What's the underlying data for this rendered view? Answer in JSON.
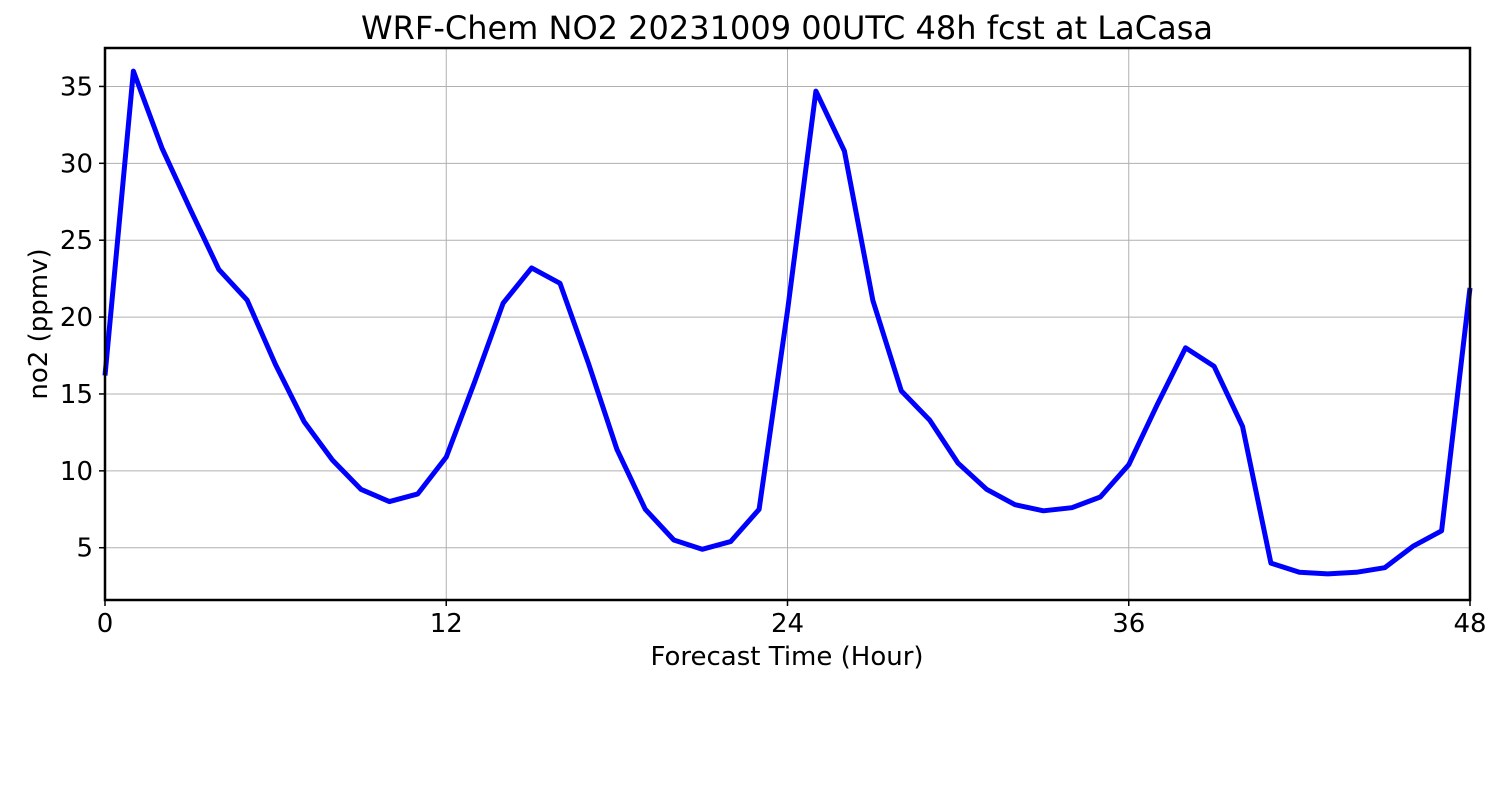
{
  "chart_data": {
    "type": "line",
    "title": "WRF-Chem NO2  20231009 00UTC 48h fcst at LaCasa",
    "xlabel": "Forecast Time (Hour)",
    "ylabel": "no2  (ppmv)",
    "xlim": [
      0,
      48
    ],
    "ylim": [
      1.6,
      37.5
    ],
    "xticks": [
      0,
      12,
      24,
      36,
      48
    ],
    "yticks": [
      5,
      10,
      15,
      20,
      25,
      30,
      35
    ],
    "grid": true,
    "line_color": "#0000ff",
    "grid_color": "#b0b0b0",
    "series": [
      {
        "x": [
          0,
          1,
          2,
          3,
          4,
          5,
          6,
          7,
          8,
          9,
          10,
          11,
          12,
          13,
          14,
          15,
          16,
          17,
          18,
          19,
          20,
          21,
          22,
          23,
          24,
          25,
          26,
          27,
          28,
          29,
          30,
          31,
          32,
          33,
          34,
          35,
          36,
          37,
          38,
          39,
          40,
          41,
          42,
          43,
          44,
          45,
          46,
          47,
          48
        ],
        "values": [
          16.2,
          36.0,
          31.0,
          27.0,
          23.1,
          21.1,
          16.9,
          13.2,
          10.7,
          8.8,
          8.0,
          8.5,
          10.9,
          15.8,
          20.9,
          23.2,
          22.2,
          17.0,
          11.4,
          7.5,
          5.5,
          4.9,
          5.4,
          7.5,
          20.4,
          34.7,
          30.8,
          21.1,
          15.2,
          13.3,
          10.5,
          8.8,
          7.8,
          7.4,
          7.6,
          8.3,
          10.4,
          14.3,
          18.0,
          16.8,
          12.9,
          4.0,
          3.4,
          3.3,
          3.4,
          3.7,
          5.1,
          6.1,
          21.9
        ]
      }
    ]
  }
}
